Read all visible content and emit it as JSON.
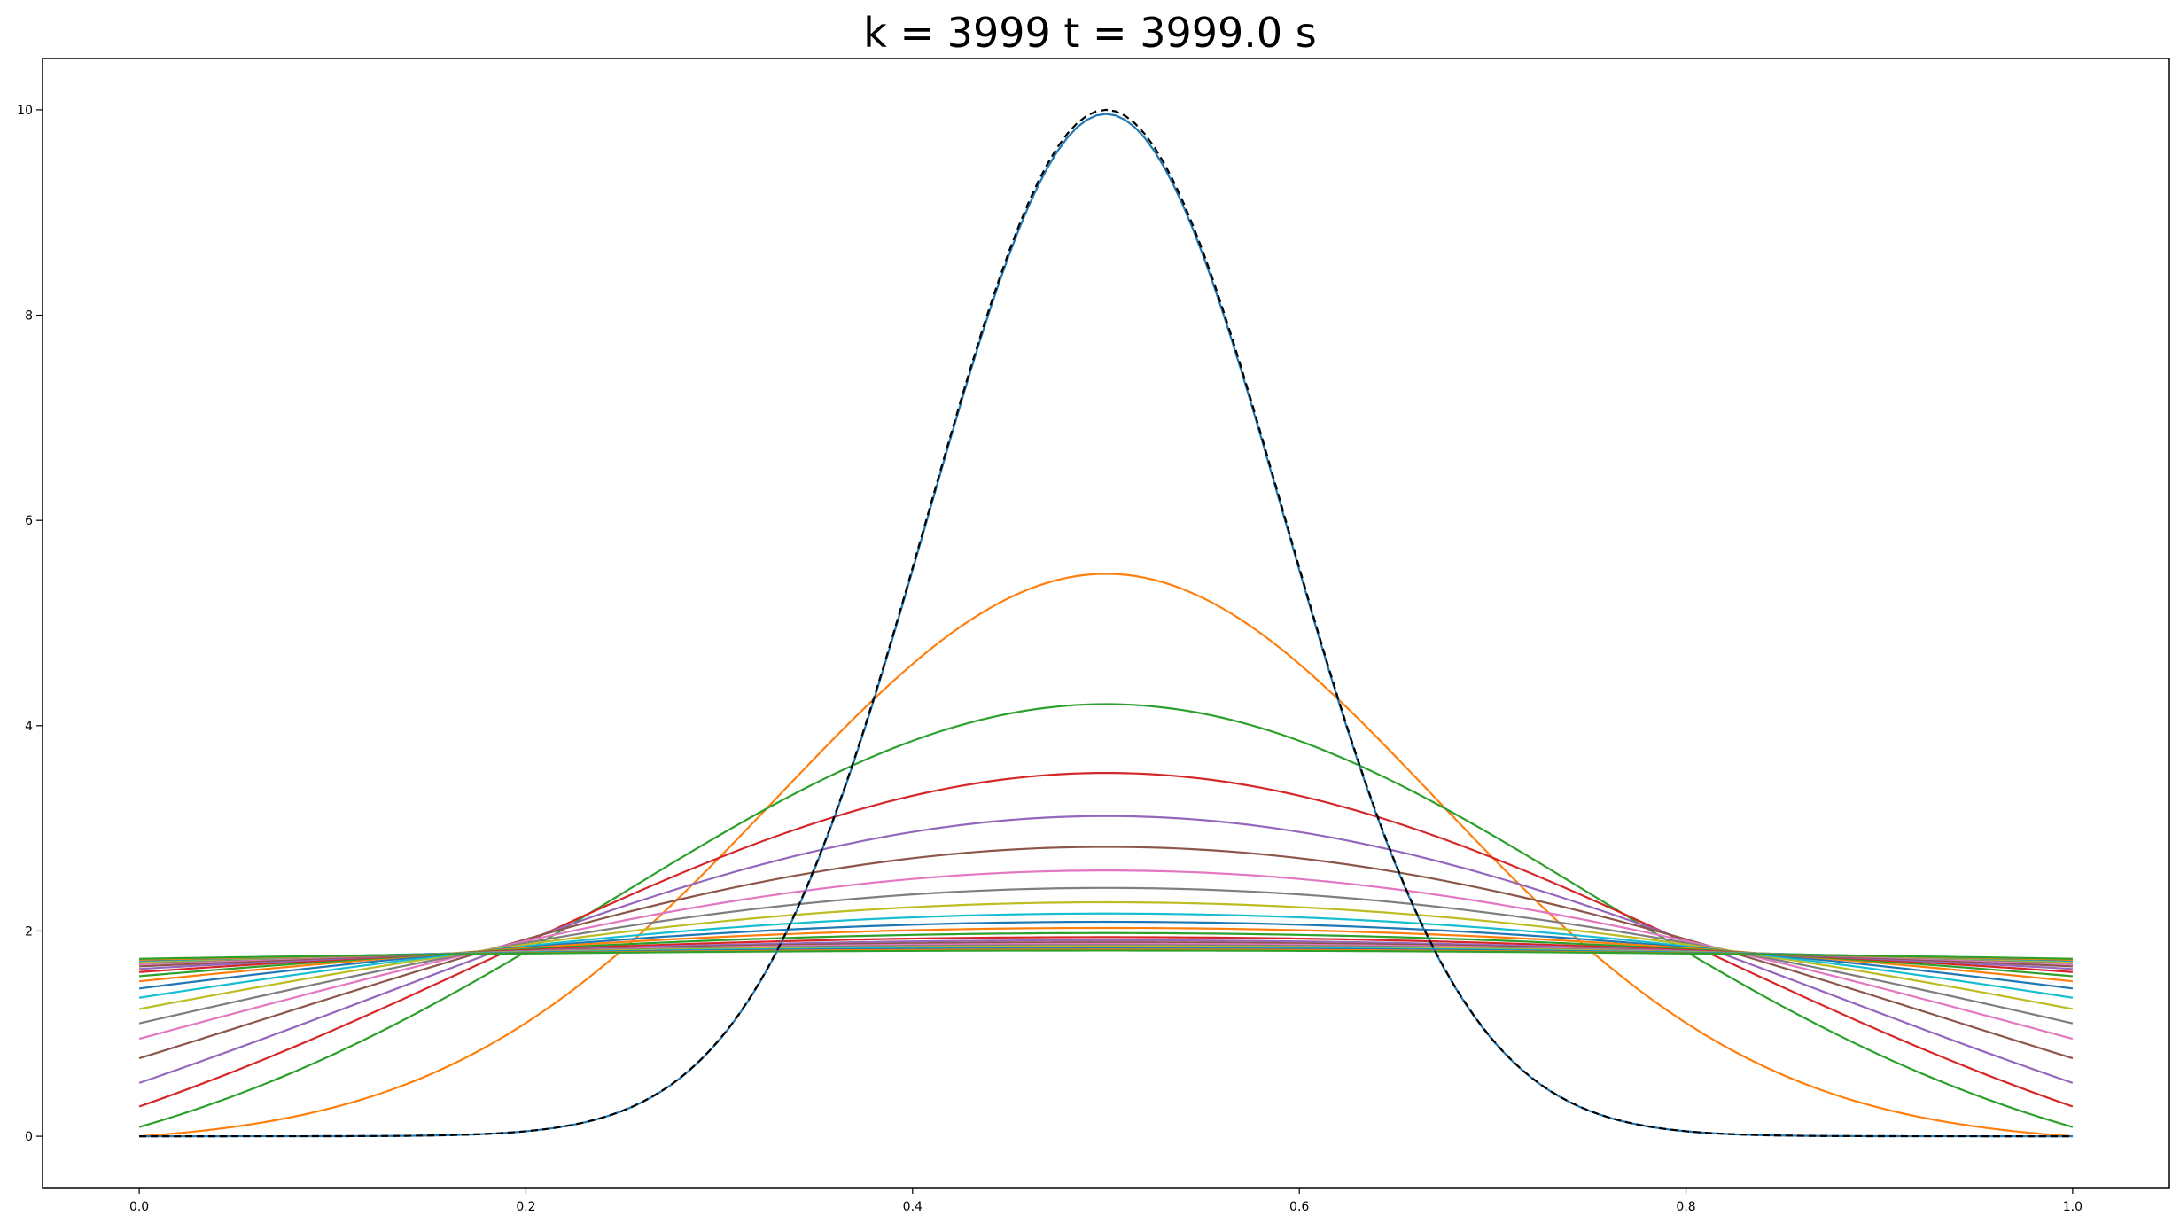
{
  "chart_data": {
    "type": "line",
    "title": "k = 3999 t = 3999.0 s",
    "xlabel": "",
    "ylabel": "",
    "xlim": [
      -0.05,
      1.05
    ],
    "ylim": [
      -0.5,
      10.5
    ],
    "xticks": [
      0.0,
      0.2,
      0.4,
      0.6,
      0.8,
      1.0
    ],
    "yticks": [
      0,
      2,
      4,
      6,
      8,
      10
    ],
    "xtick_labels": [
      "0.0",
      "0.2",
      "0.4",
      "0.6",
      "0.8",
      "1.0"
    ],
    "ytick_labels": [
      "0",
      "2",
      "4",
      "6",
      "8",
      "10"
    ],
    "grid": false,
    "legend": "none",
    "mean_level": 1.78,
    "x": [
      0.0,
      0.05,
      0.1,
      0.15,
      0.2,
      0.25,
      0.3,
      0.35,
      0.4,
      0.45,
      0.5,
      0.55,
      0.6,
      0.65,
      0.7,
      0.75,
      0.8,
      0.85,
      0.9,
      0.95,
      1.0
    ],
    "reference": {
      "style": "dashed",
      "color": "#000000",
      "values": [
        0.0,
        0.0,
        0.0,
        0.0,
        0.0,
        0.0,
        0.1,
        0.8,
        3.4,
        7.7,
        10.0,
        7.7,
        3.4,
        0.8,
        0.1,
        0.0,
        0.0,
        0.0,
        0.0,
        0.0,
        0.0
      ]
    },
    "series": [
      {
        "color": "#1f77b4",
        "edge_value": 0.0,
        "peak_value": 9.96
      },
      {
        "color": "#ff7f0e",
        "edge_value": 0.0,
        "peak_value": 5.48
      },
      {
        "color": "#2ca02c",
        "edge_value": 0.09,
        "peak_value": 4.21
      },
      {
        "color": "#d62728",
        "edge_value": 0.29,
        "peak_value": 3.54
      },
      {
        "color": "#9467bd",
        "edge_value": 0.52,
        "peak_value": 3.12
      },
      {
        "color": "#8c564b",
        "edge_value": 0.76,
        "peak_value": 2.82
      },
      {
        "color": "#e377c2",
        "edge_value": 0.95,
        "peak_value": 2.59
      },
      {
        "color": "#7f7f7f",
        "edge_value": 1.1,
        "peak_value": 2.42
      },
      {
        "color": "#bcbd22",
        "edge_value": 1.24,
        "peak_value": 2.28
      },
      {
        "color": "#17becf",
        "edge_value": 1.35,
        "peak_value": 2.17
      },
      {
        "color": "#1f77b4",
        "edge_value": 1.44,
        "peak_value": 2.09
      },
      {
        "color": "#ff7f0e",
        "edge_value": 1.51,
        "peak_value": 2.03
      },
      {
        "color": "#2ca02c",
        "edge_value": 1.56,
        "peak_value": 1.98
      },
      {
        "color": "#d62728",
        "edge_value": 1.6,
        "peak_value": 1.94
      },
      {
        "color": "#9467bd",
        "edge_value": 1.63,
        "peak_value": 1.91
      },
      {
        "color": "#8c564b",
        "edge_value": 1.655,
        "peak_value": 1.89
      },
      {
        "color": "#e377c2",
        "edge_value": 1.675,
        "peak_value": 1.875
      },
      {
        "color": "#7f7f7f",
        "edge_value": 1.69,
        "peak_value": 1.862
      },
      {
        "color": "#bcbd22",
        "edge_value": 1.7,
        "peak_value": 1.85
      },
      {
        "color": "#17becf",
        "edge_value": 1.71,
        "peak_value": 1.838
      },
      {
        "color": "#1f77b4",
        "edge_value": 1.715,
        "peak_value": 1.83
      },
      {
        "color": "#ff7f0e",
        "edge_value": 1.72,
        "peak_value": 1.82
      },
      {
        "color": "#2ca02c",
        "edge_value": 1.73,
        "peak_value": 1.81
      }
    ]
  }
}
